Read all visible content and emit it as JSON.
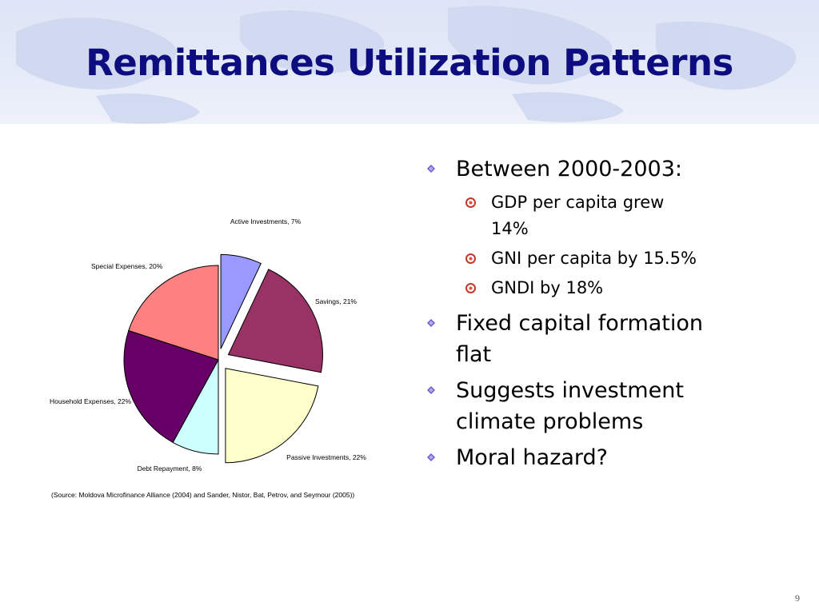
{
  "slide": {
    "title": "Remittances Utilization Patterns",
    "page_number": "9",
    "source_note": "(Source: Moldova Microfinance Alliance (2004) and Sander, Nistor, Bat, Petrov, and Seymour (2005))"
  },
  "bullets": [
    {
      "text": "Between 2000-2003:",
      "sub": [
        {
          "text": "GDP per capita grew",
          "text2": "14%"
        },
        {
          "text": "GNI per capita by 15.5%"
        },
        {
          "text": "GNDI by 18%"
        }
      ]
    },
    {
      "text": "Fixed capital formation",
      "text2": "flat"
    },
    {
      "text": "Suggests investment",
      "text2": "climate problems"
    },
    {
      "text": "Moral hazard?"
    }
  ],
  "colors": {
    "title": "#0d0d80",
    "bullet_diamond": "#6a5acd",
    "sub_bullet": "#c0392b"
  },
  "chart_data": {
    "type": "pie",
    "title": "",
    "slices": [
      {
        "label": "Active Investments, 7%",
        "value": 7,
        "color": "#9999ff",
        "exploded": true
      },
      {
        "label": "Savings, 21%",
        "value": 21,
        "color": "#993366",
        "exploded": true
      },
      {
        "label": "Passive Investments, 22%",
        "value": 22,
        "color": "#ffffcc",
        "exploded": true
      },
      {
        "label": "Debt Repayment, 8%",
        "value": 8,
        "color": "#ccffff",
        "exploded": false
      },
      {
        "label": "Household Expenses, 22%",
        "value": 22,
        "color": "#660066",
        "exploded": false
      },
      {
        "label": "Special Expenses, 20%",
        "value": 20,
        "color": "#ff8080",
        "exploded": false
      }
    ],
    "start": "top",
    "direction": "clockwise"
  }
}
